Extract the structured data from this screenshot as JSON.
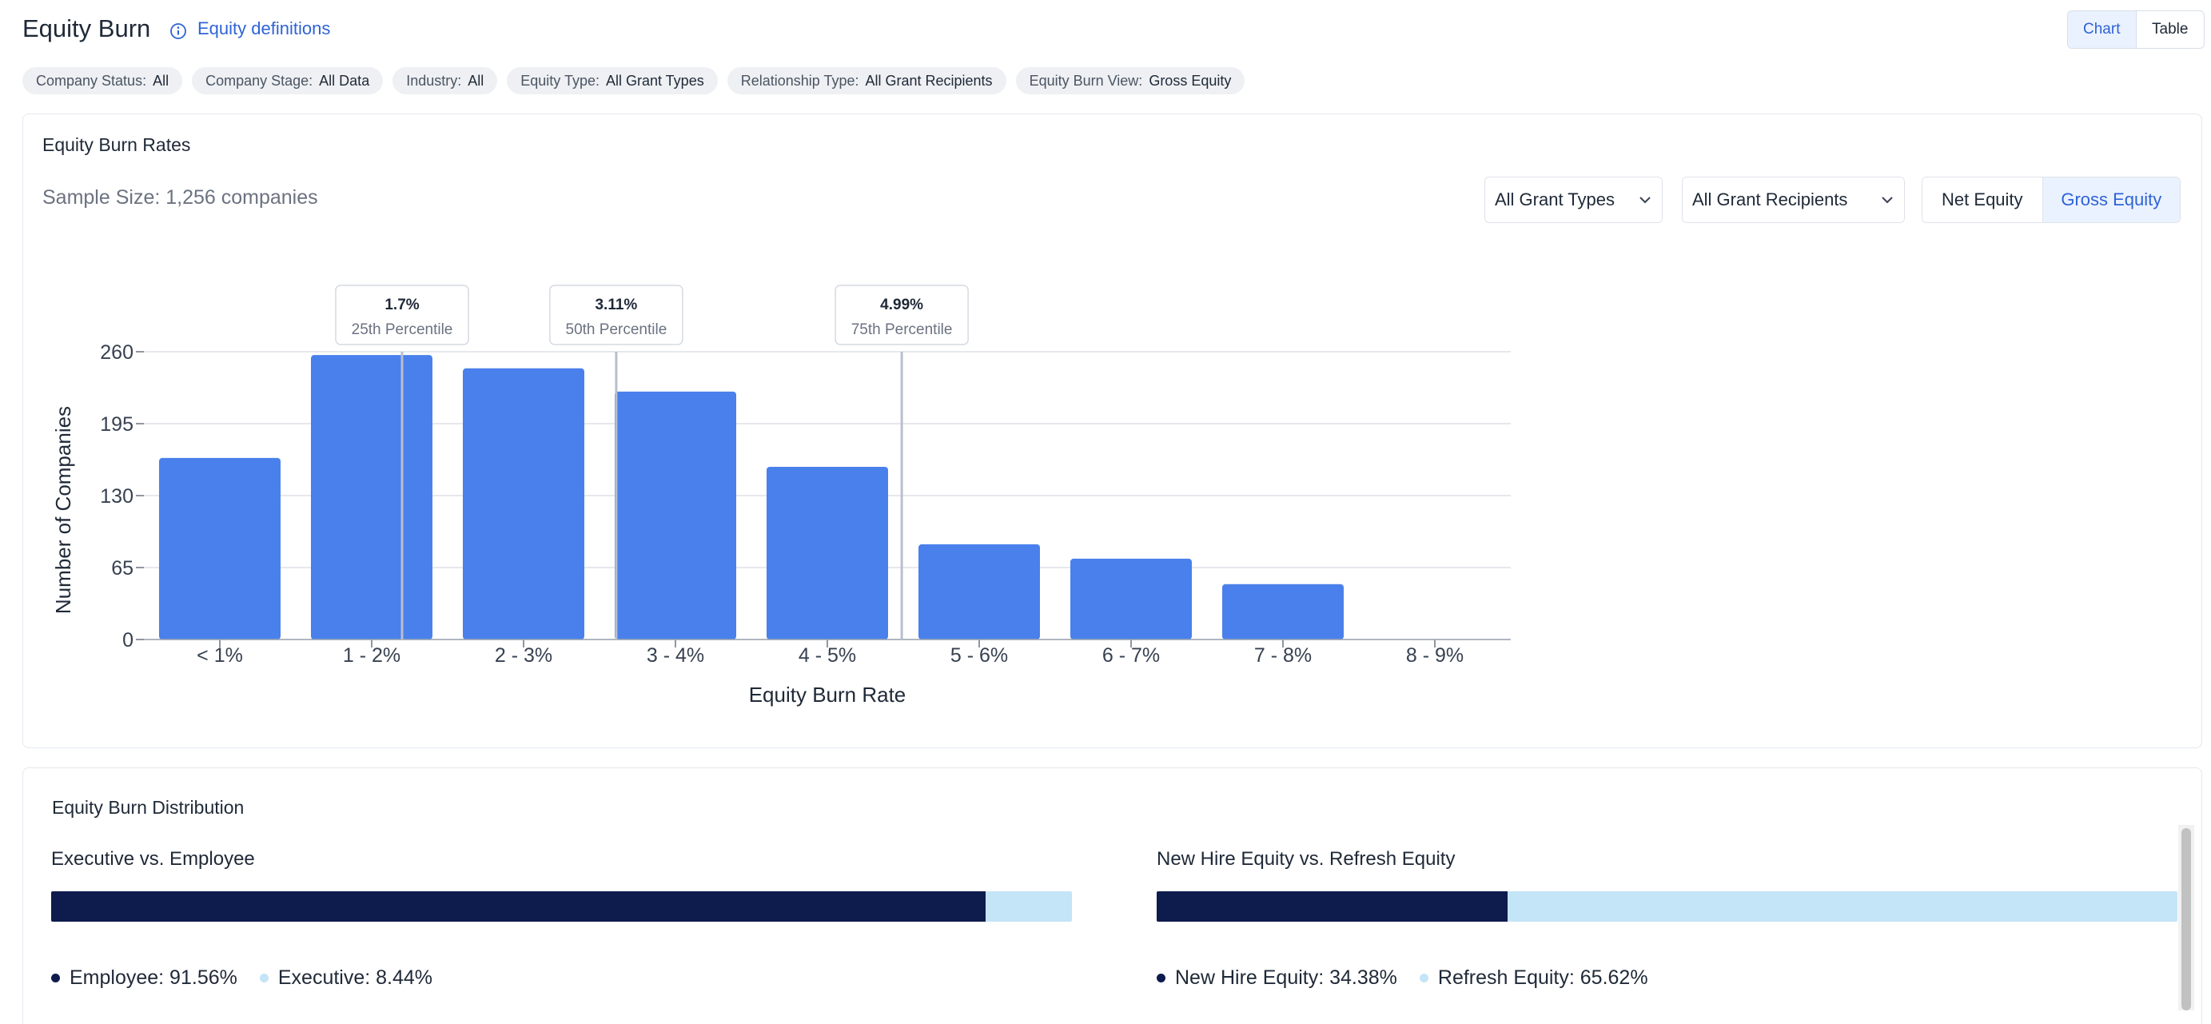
{
  "header": {
    "title": "Equity Burn",
    "definitions_link": "Equity definitions",
    "view_toggle": [
      "Chart",
      "Table"
    ],
    "active_view": "Chart"
  },
  "filters": [
    {
      "label": "Company Status:",
      "value": "All"
    },
    {
      "label": "Company Stage:",
      "value": "All Data"
    },
    {
      "label": "Industry:",
      "value": "All"
    },
    {
      "label": "Equity Type:",
      "value": "All Grant Types"
    },
    {
      "label": "Relationship Type:",
      "value": "All Grant Recipients"
    },
    {
      "label": "Equity Burn View:",
      "value": "Gross Equity"
    }
  ],
  "rates_card": {
    "title": "Equity Burn Rates",
    "sample_size": "Sample Size: 1,256 companies",
    "grant_type_select": "All Grant Types",
    "recipient_select": "All Grant Recipients",
    "equity_toggle": [
      "Net Equity",
      "Gross Equity"
    ],
    "active_equity": "Gross Equity"
  },
  "colors": {
    "bar": "#4a80ec",
    "accent": "#2f63d6",
    "dark_segment": "#0e1b4d",
    "light_segment": "#c4e4f7"
  },
  "chart_data": {
    "type": "bar",
    "xlabel": "Equity Burn Rate",
    "ylabel": "Number of Companies",
    "categories": [
      "< 1%",
      "1 - 2%",
      "2 - 3%",
      "3 - 4%",
      "4 - 5%",
      "5 - 6%",
      "6 - 7%",
      "7 - 8%",
      "8 - 9%"
    ],
    "values": [
      164,
      257,
      245,
      224,
      156,
      86,
      73,
      50,
      0
    ],
    "ylim": [
      0,
      260
    ],
    "yticks": [
      0,
      65,
      130,
      195,
      260
    ],
    "grid": true,
    "percentiles": [
      {
        "value": "1.7%",
        "label": "25th Percentile",
        "x": 1.7
      },
      {
        "value": "3.11%",
        "label": "50th Percentile",
        "x": 3.11
      },
      {
        "value": "4.99%",
        "label": "75th Percentile",
        "x": 4.99
      }
    ]
  },
  "distribution": {
    "title": "Equity Burn Distribution",
    "left": {
      "title": "Executive vs. Employee",
      "dark_fraction": 0.9156,
      "items": [
        {
          "label": "Employee: 91.56%"
        },
        {
          "label": "Executive: 8.44%"
        }
      ]
    },
    "right": {
      "title": "New Hire Equity vs. Refresh Equity",
      "dark_fraction": 0.3438,
      "items": [
        {
          "label": "New Hire Equity: 34.38%"
        },
        {
          "label": "Refresh Equity: 65.62%"
        }
      ]
    }
  }
}
